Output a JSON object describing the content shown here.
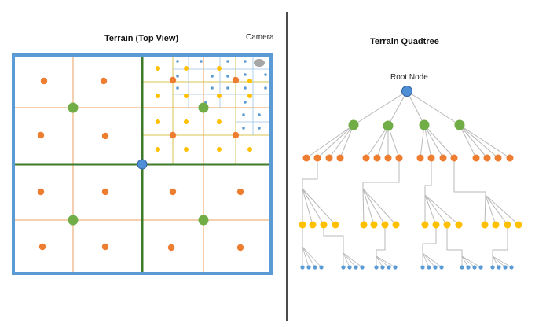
{
  "left_panel": {
    "title": "Terrain (Top View)",
    "camera_label": "Camera"
  },
  "right_panel": {
    "title": "Terrain Quadtree",
    "root_label": "Root Node"
  },
  "colors": {
    "root": "#4f8fd6",
    "level1": "#70ad47",
    "level2": "#ed7d31",
    "level3": "#ffc000",
    "level4": "#5b9bd5",
    "camera": "#a6a6a6",
    "border": "#5b9bd5",
    "green_line": "#3d7a2a",
    "orange_line": "#e8a060",
    "yellow_line": "#d9c34d",
    "blue_line": "#9dc3e6",
    "tree_line": "#b8b8b8",
    "divider": "#111111"
  }
}
